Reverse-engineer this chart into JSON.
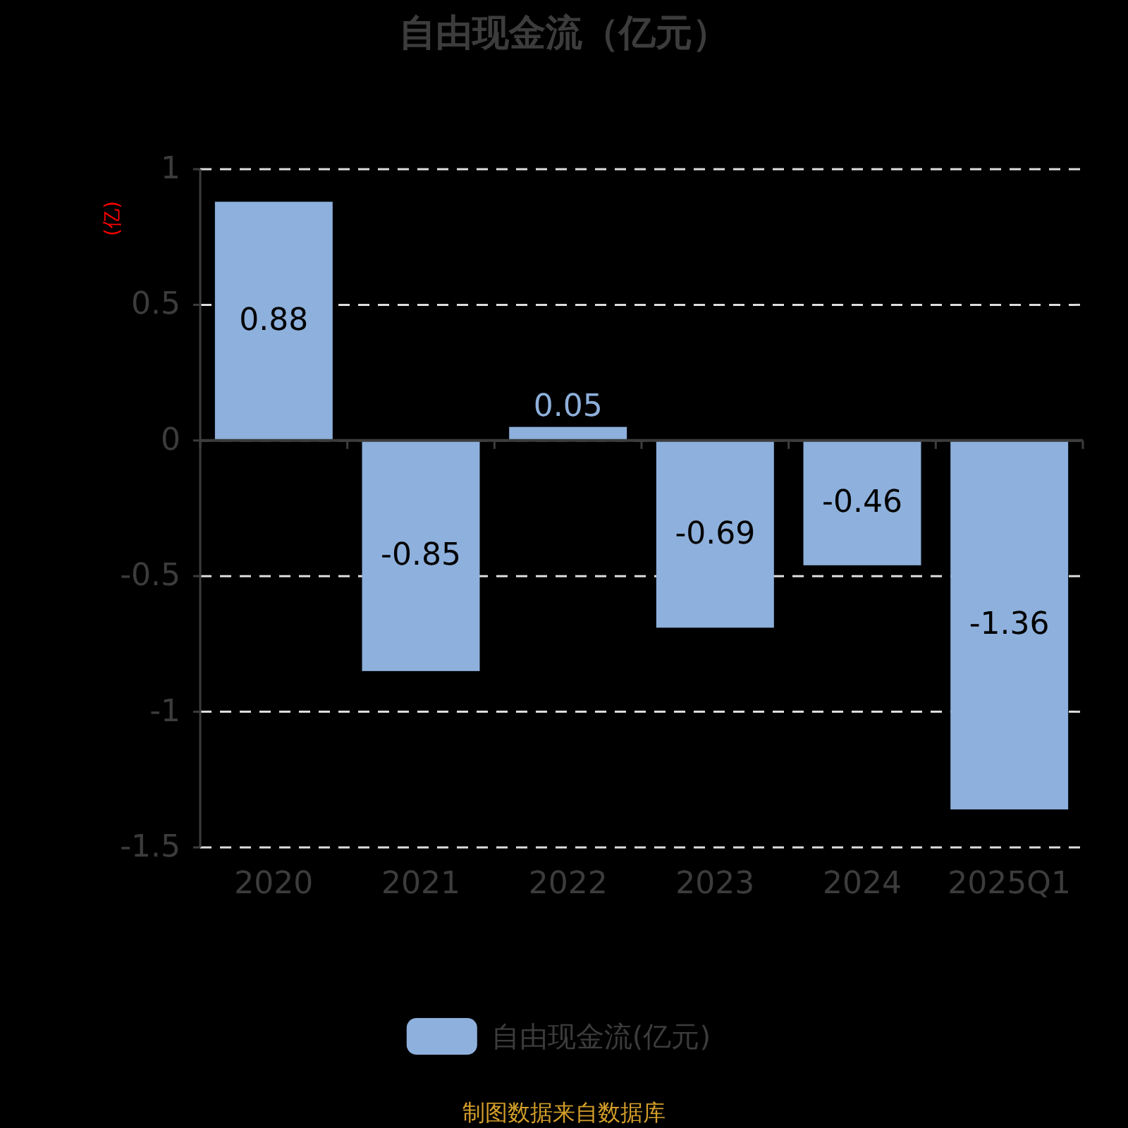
{
  "chart_data": {
    "type": "bar",
    "title": "自由现金流（亿元）",
    "ylabel": "(亿)",
    "categories": [
      "2020",
      "2021",
      "2022",
      "2023",
      "2024",
      "2025Q1"
    ],
    "series": [
      {
        "name": "自由现金流(亿元)",
        "color": "#8eb0dc",
        "values": [
          0.88,
          -0.85,
          0.05,
          -0.69,
          -0.46,
          -1.36
        ]
      }
    ],
    "ylim": [
      -1.5,
      1
    ],
    "yticks": [
      -1.5,
      -1,
      -0.5,
      0,
      0.5,
      1
    ],
    "grid": "y",
    "data_labels": true,
    "legend": "bottom",
    "annotations": [
      "制图数据来自数据库"
    ]
  }
}
